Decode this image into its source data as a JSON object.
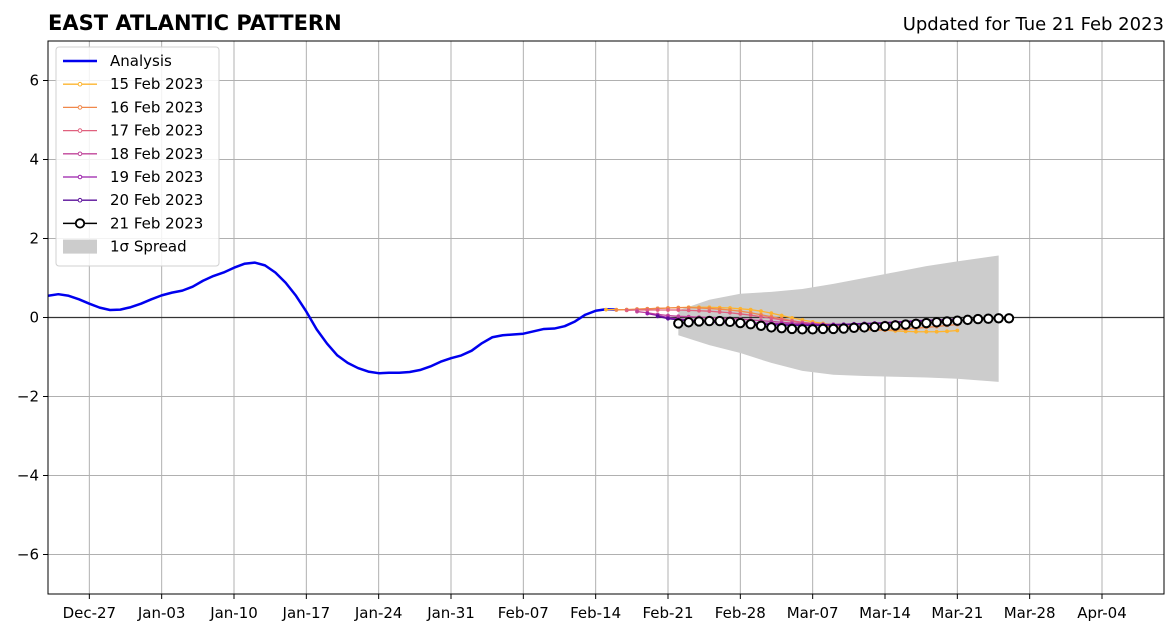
{
  "chart_data": {
    "type": "line",
    "title": "EAST ATLANTIC PATTERN",
    "subtitle": "Updated for Tue 21 Feb 2023",
    "xlabel": "",
    "ylabel": "",
    "ylim": [
      -7,
      7
    ],
    "xlim": [
      "2022-12-23",
      "2023-04-10"
    ],
    "grid": true,
    "legend_position": "top-left",
    "x_tick_labels": [
      "Dec-27",
      "Jan-03",
      "Jan-10",
      "Jan-17",
      "Jan-24",
      "Jan-31",
      "Feb-07",
      "Feb-14",
      "Feb-21",
      "Feb-28",
      "Mar-07",
      "Mar-14",
      "Mar-21",
      "Mar-28",
      "Apr-04"
    ],
    "x_tick_dates": [
      "2022-12-27",
      "2023-01-03",
      "2023-01-10",
      "2023-01-17",
      "2023-01-24",
      "2023-01-31",
      "2023-02-07",
      "2023-02-14",
      "2023-02-21",
      "2023-02-28",
      "2023-03-07",
      "2023-03-14",
      "2023-03-21",
      "2023-03-28",
      "2023-04-04"
    ],
    "y_ticks": [
      6,
      4,
      2,
      0,
      -2,
      -4,
      -6
    ],
    "y_tick_labels": [
      "6",
      "4",
      "2",
      "0",
      "−2",
      "−4",
      "−6"
    ],
    "analysis": {
      "name": "Analysis",
      "color": "#0000ee",
      "x": [
        "2022-12-23",
        "2022-12-24",
        "2022-12-25",
        "2022-12-26",
        "2022-12-27",
        "2022-12-28",
        "2022-12-29",
        "2022-12-30",
        "2022-12-31",
        "2023-01-01",
        "2023-01-02",
        "2023-01-03",
        "2023-01-04",
        "2023-01-05",
        "2023-01-06",
        "2023-01-07",
        "2023-01-08",
        "2023-01-09",
        "2023-01-10",
        "2023-01-11",
        "2023-01-12",
        "2023-01-13",
        "2023-01-14",
        "2023-01-15",
        "2023-01-16",
        "2023-01-17",
        "2023-01-18",
        "2023-01-19",
        "2023-01-20",
        "2023-01-21",
        "2023-01-22",
        "2023-01-23",
        "2023-01-24",
        "2023-01-25",
        "2023-01-26",
        "2023-01-27",
        "2023-01-28",
        "2023-01-29",
        "2023-01-30",
        "2023-01-31",
        "2023-02-01",
        "2023-02-02",
        "2023-02-03",
        "2023-02-04",
        "2023-02-05",
        "2023-02-06",
        "2023-02-07",
        "2023-02-08",
        "2023-02-09",
        "2023-02-10",
        "2023-02-11",
        "2023-02-12",
        "2023-02-13",
        "2023-02-14",
        "2023-02-15",
        "2023-02-16"
      ],
      "values": [
        0.55,
        0.59,
        0.55,
        0.46,
        0.35,
        0.25,
        0.19,
        0.2,
        0.26,
        0.35,
        0.46,
        0.56,
        0.63,
        0.68,
        0.78,
        0.93,
        1.05,
        1.14,
        1.26,
        1.36,
        1.39,
        1.32,
        1.14,
        0.88,
        0.55,
        0.15,
        -0.3,
        -0.66,
        -0.96,
        -1.15,
        -1.28,
        -1.37,
        -1.41,
        -1.4,
        -1.4,
        -1.38,
        -1.33,
        -1.24,
        -1.12,
        -1.03,
        -0.96,
        -0.84,
        -0.65,
        -0.5,
        -0.45,
        -0.43,
        -0.41,
        -0.35,
        -0.29,
        -0.28,
        -0.22,
        -0.1,
        0.07,
        0.17,
        0.21,
        0.2
      ]
    },
    "series": [
      {
        "name": "15 Feb 2023",
        "color": "#fdb42f",
        "start": "2023-02-15",
        "values": [
          0.2,
          0.2,
          0.2,
          0.21,
          0.22,
          0.23,
          0.24,
          0.25,
          0.26,
          0.26,
          0.26,
          0.25,
          0.24,
          0.22,
          0.2,
          0.16,
          0.11,
          0.05,
          -0.01,
          -0.06,
          -0.11,
          -0.15,
          -0.19,
          -0.22,
          -0.25,
          -0.28,
          -0.3,
          -0.32,
          -0.34,
          -0.35,
          -0.36,
          -0.36,
          -0.36,
          -0.35,
          -0.33
        ]
      },
      {
        "name": "16 Feb 2023",
        "color": "#f0884b",
        "start": "2023-02-16",
        "values": [
          0.19,
          0.2,
          0.21,
          0.22,
          0.23,
          0.24,
          0.25,
          0.25,
          0.24,
          0.23,
          0.21,
          0.19,
          0.16,
          0.12,
          0.07,
          0.02,
          -0.03,
          -0.08,
          -0.13,
          -0.17,
          -0.21,
          -0.24,
          -0.27,
          -0.29,
          -0.31,
          -0.32,
          -0.32,
          -0.31,
          -0.29,
          -0.27,
          -0.25,
          -0.23,
          -0.2,
          -0.18
        ]
      },
      {
        "name": "17 Feb 2023",
        "color": "#e0607e",
        "start": "2023-02-17",
        "values": [
          0.18,
          0.19,
          0.19,
          0.19,
          0.19,
          0.19,
          0.18,
          0.17,
          0.16,
          0.14,
          0.12,
          0.09,
          0.06,
          0.02,
          -0.02,
          -0.06,
          -0.09,
          -0.12,
          -0.15,
          -0.18,
          -0.2,
          -0.21,
          -0.22,
          -0.22,
          -0.22,
          -0.21,
          -0.2,
          -0.19,
          -0.17,
          -0.15,
          -0.13,
          -0.11,
          -0.09
        ]
      },
      {
        "name": "18 Feb 2023",
        "color": "#c0449a",
        "start": "2023-02-18",
        "values": [
          0.15,
          0.12,
          0.08,
          0.05,
          0.03,
          0.02,
          0.01,
          0.0,
          -0.01,
          -0.02,
          -0.04,
          -0.06,
          -0.08,
          -0.1,
          -0.12,
          -0.14,
          -0.15,
          -0.16,
          -0.17,
          -0.17,
          -0.17,
          -0.17,
          -0.16,
          -0.15,
          -0.14,
          -0.13,
          -0.12,
          -0.1,
          -0.09,
          -0.07,
          -0.06,
          -0.05
        ]
      },
      {
        "name": "19 Feb 2023",
        "color": "#9a1faa",
        "start": "2023-02-19",
        "values": [
          0.1,
          0.05,
          0.0,
          -0.04,
          -0.06,
          -0.08,
          -0.09,
          -0.1,
          -0.11,
          -0.12,
          -0.13,
          -0.14,
          -0.15,
          -0.16,
          -0.17,
          -0.18,
          -0.18,
          -0.18,
          -0.18,
          -0.17,
          -0.16,
          -0.15,
          -0.14,
          -0.13,
          -0.11,
          -0.1,
          -0.08,
          -0.07,
          -0.06,
          -0.05,
          -0.04
        ]
      },
      {
        "name": "20 Feb 2023",
        "color": "#5a0f9a",
        "start": "2023-02-20",
        "values": [
          0.03,
          -0.03,
          -0.06,
          -0.08,
          -0.1,
          -0.12,
          -0.13,
          -0.14,
          -0.15,
          -0.16,
          -0.17,
          -0.18,
          -0.19,
          -0.2,
          -0.2,
          -0.2,
          -0.2,
          -0.19,
          -0.18,
          -0.17,
          -0.16,
          -0.15,
          -0.14,
          -0.12,
          -0.11,
          -0.09,
          -0.08,
          -0.07,
          -0.06,
          -0.05
        ]
      },
      {
        "name": "21 Feb 2023",
        "color": "#000000",
        "marker": "open-circle",
        "start": "2023-02-22",
        "values": [
          -0.15,
          -0.12,
          -0.1,
          -0.09,
          -0.09,
          -0.11,
          -0.14,
          -0.17,
          -0.21,
          -0.25,
          -0.27,
          -0.29,
          -0.3,
          -0.3,
          -0.29,
          -0.29,
          -0.28,
          -0.26,
          -0.25,
          -0.24,
          -0.22,
          -0.2,
          -0.18,
          -0.16,
          -0.14,
          -0.12,
          -0.1,
          -0.08,
          -0.06,
          -0.04,
          -0.03,
          -0.02,
          -0.02
        ]
      }
    ],
    "spread": {
      "name": "1σ Spread",
      "color": "#cccccc",
      "x": [
        "2023-02-22",
        "2023-02-25",
        "2023-02-28",
        "2023-03-03",
        "2023-03-06",
        "2023-03-09",
        "2023-03-12",
        "2023-03-15",
        "2023-03-18",
        "2023-03-21",
        "2023-03-25"
      ],
      "upper": [
        0.18,
        0.45,
        0.6,
        0.65,
        0.72,
        0.85,
        1.0,
        1.15,
        1.3,
        1.42,
        1.57
      ],
      "lower": [
        -0.45,
        -0.7,
        -0.9,
        -1.15,
        -1.35,
        -1.45,
        -1.48,
        -1.5,
        -1.52,
        -1.55,
        -1.63
      ]
    }
  }
}
